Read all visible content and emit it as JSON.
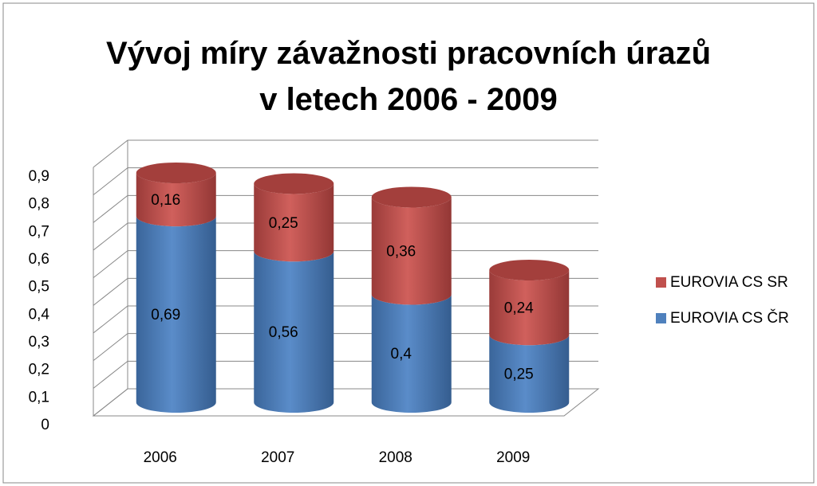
{
  "chart_data": {
    "type": "bar3d-cylinder-stacked",
    "title": "Vývoj míry závažnosti pracovních úrazů v letech 2006 - 2009",
    "categories": [
      "2006",
      "2007",
      "2008",
      "2009"
    ],
    "series": [
      {
        "name": "EUROVIA CS ČR",
        "color": "#4f81bd",
        "values": [
          0.69,
          0.56,
          0.4,
          0.25
        ],
        "value_labels": [
          "0,69",
          "0,56",
          "0,4",
          "0,25"
        ]
      },
      {
        "name": "EUROVIA CS SR",
        "color": "#c0504d",
        "values": [
          0.16,
          0.25,
          0.36,
          0.24
        ],
        "value_labels": [
          "0,16",
          "0,25",
          "0,36",
          "0,24"
        ]
      }
    ],
    "ylim": [
      0,
      0.9
    ],
    "yticks": [
      0,
      {
        "value": 0.1,
        "label": "0,1"
      },
      {
        "value": 0.2,
        "label": "0,2"
      },
      {
        "value": 0.3,
        "label": "0,3"
      },
      {
        "value": 0.4,
        "label": "0,4"
      },
      {
        "value": 0.5,
        "label": "0,5"
      },
      {
        "value": 0.6,
        "label": "0,6"
      },
      {
        "value": 0.7,
        "label": "0,7"
      },
      {
        "value": 0.8,
        "label": "0,8"
      },
      {
        "value": 0.9,
        "label": "0,9"
      }
    ],
    "grid": true,
    "legend": "right"
  }
}
